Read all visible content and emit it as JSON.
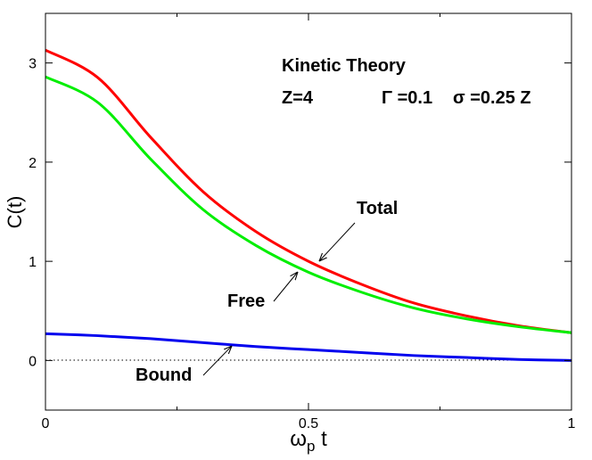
{
  "chart_data": {
    "type": "line",
    "title": "",
    "xlabel": "ω_p t",
    "xlabel_main": "ω",
    "xlabel_sub": "p",
    "xlabel_tail": " t",
    "ylabel": "C(t)",
    "xlim": [
      0,
      1
    ],
    "ylim": [
      -0.5,
      3.5
    ],
    "xticks": [
      0,
      0.5,
      1
    ],
    "xtick_labels": [
      "0",
      "0.5",
      "1"
    ],
    "xminor_ticks": [
      0.25,
      0.75
    ],
    "yticks": [
      0,
      1,
      2,
      3
    ],
    "ytick_labels": [
      "0",
      "1",
      "2",
      "3"
    ],
    "grid": false,
    "zero_line": "dotted",
    "annotations": {
      "title_line1": "Kinetic Theory",
      "params": [
        "Z=4",
        "Γ =0.1",
        "σ =0.25 Z"
      ]
    },
    "x": [
      0,
      0.1,
      0.2,
      0.3,
      0.4,
      0.5,
      0.6,
      0.7,
      0.8,
      0.9,
      1.0
    ],
    "series": [
      {
        "name": "Total",
        "color": "#ff0000",
        "values": [
          3.13,
          2.85,
          2.25,
          1.7,
          1.3,
          1.0,
          0.77,
          0.58,
          0.45,
          0.35,
          0.28
        ]
      },
      {
        "name": "Free",
        "color": "#00ee00",
        "values": [
          2.86,
          2.6,
          2.03,
          1.52,
          1.16,
          0.89,
          0.69,
          0.53,
          0.42,
          0.34,
          0.28
        ]
      },
      {
        "name": "Bound",
        "color": "#0000ee",
        "values": [
          0.27,
          0.25,
          0.22,
          0.18,
          0.14,
          0.11,
          0.08,
          0.05,
          0.03,
          0.01,
          0.0
        ]
      }
    ]
  }
}
